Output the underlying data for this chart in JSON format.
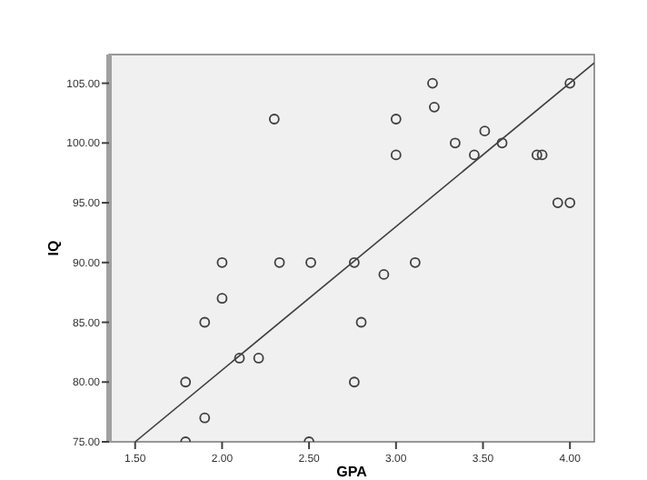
{
  "chart_data": {
    "type": "scatter",
    "xlabel": "GPA",
    "ylabel": "IQ",
    "grid": false,
    "xlim": [
      1.35,
      4.14
    ],
    "ylim": [
      75,
      107.4
    ],
    "xticks": [
      {
        "value": 1.5,
        "label": "1.50"
      },
      {
        "value": 2,
        "label": "2.00"
      },
      {
        "value": 2.5,
        "label": "2.50"
      },
      {
        "value": 3,
        "label": "3.00"
      },
      {
        "value": 3.5,
        "label": "3.50"
      },
      {
        "value": 4,
        "label": "4.00"
      }
    ],
    "yticks": [
      {
        "value": 75,
        "label": "75.00"
      },
      {
        "value": 80,
        "label": "80.00"
      },
      {
        "value": 85,
        "label": "85.00"
      },
      {
        "value": 90,
        "label": "90.00"
      },
      {
        "value": 95,
        "label": "95.00"
      },
      {
        "value": 100,
        "label": "100.00"
      },
      {
        "value": 105,
        "label": "105.00"
      }
    ],
    "series": [
      {
        "marker": "circle",
        "color": "#404040",
        "x": [
          1.79,
          1.79,
          1.9,
          1.9,
          2.0,
          2.0,
          2.1,
          2.21,
          2.3,
          2.33,
          2.51,
          2.5,
          2.76,
          2.76,
          2.8,
          2.93,
          3.0,
          3.0,
          3.11,
          3.21,
          3.22,
          3.34,
          3.45,
          3.51,
          3.61,
          3.81,
          3.84,
          3.93,
          4.0,
          4.0
        ],
        "values": [
          75,
          80,
          77,
          85,
          87,
          90,
          82,
          82,
          102,
          90,
          90,
          75,
          90,
          80,
          85,
          89,
          102,
          99,
          90,
          105,
          103,
          100,
          99,
          101,
          100,
          99,
          99,
          95,
          95,
          105
        ]
      },
      {
        "type": "line",
        "color": "#404040",
        "x": [
          1.5,
          4.14
        ],
        "values": [
          75,
          106.7
        ]
      }
    ]
  }
}
